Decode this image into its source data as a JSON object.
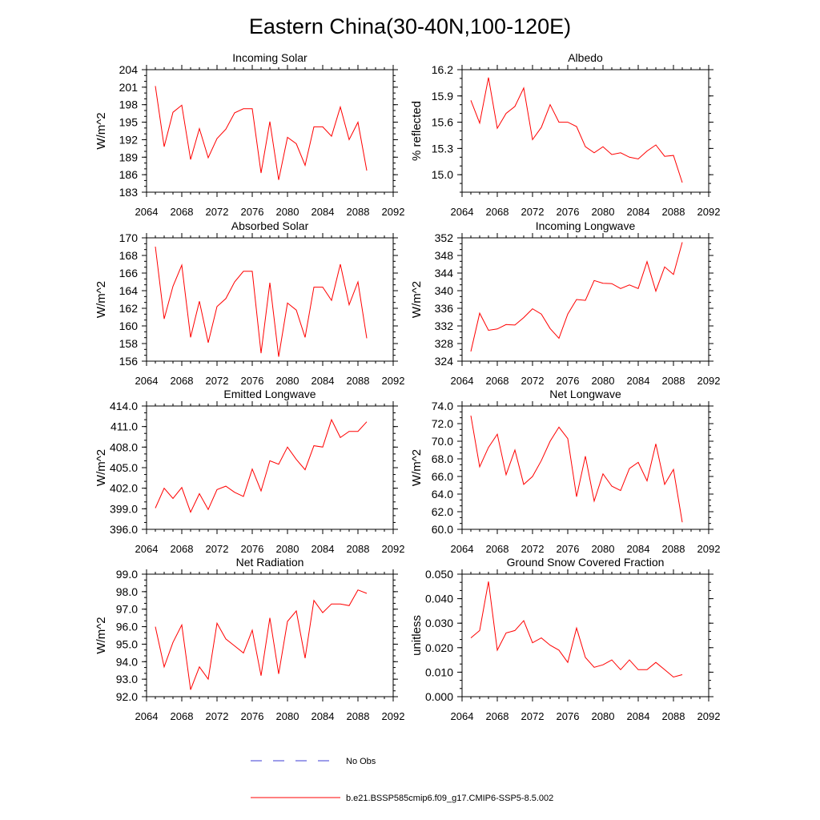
{
  "figure": {
    "title": "Eastern China(30-40N,100-120E)"
  },
  "legend": {
    "entries": [
      {
        "label": "No Obs",
        "color": "#3b3bd6",
        "dash": true
      },
      {
        "label": "b.e21.BSSP585cmip6.f09_g17.CMIP6-SSP5-8.5.002",
        "color": "#ff0000",
        "dash": false
      }
    ]
  },
  "colors": {
    "series": "#ff0000",
    "axis": "#000000"
  },
  "chart_data": [
    {
      "type": "line",
      "title": "Incoming Solar",
      "ylabel": "W/m^2",
      "xlim": [
        2064,
        2092
      ],
      "xticks": [
        "2064",
        "2068",
        "2072",
        "2076",
        "2080",
        "2084",
        "2088",
        "2092"
      ],
      "ylim": [
        183,
        204
      ],
      "yticks": [
        "183",
        "186",
        "189",
        "192",
        "195",
        "198",
        "201",
        "204"
      ],
      "series": [
        {
          "x": [
            2065,
            2066,
            2067,
            2068,
            2069,
            2070,
            2071,
            2072,
            2073,
            2074,
            2075,
            2076,
            2077,
            2078,
            2079,
            2080,
            2081,
            2082,
            2083,
            2084,
            2085,
            2086,
            2087,
            2088,
            2089
          ],
          "values": [
            201.2,
            190.8,
            196.7,
            197.9,
            188.6,
            193.9,
            188.9,
            192.2,
            193.8,
            196.6,
            197.3,
            197.3,
            186.3,
            195.1,
            185.1,
            192.4,
            191.3,
            187.6,
            194.2,
            194.2,
            192.6,
            197.6,
            192.0,
            195.0,
            186.7
          ]
        }
      ]
    },
    {
      "type": "line",
      "title": "Albedo",
      "ylabel": "% reflected",
      "xlim": [
        2064,
        2092
      ],
      "xticks": [
        "2064",
        "2068",
        "2072",
        "2076",
        "2080",
        "2084",
        "2088",
        "2092"
      ],
      "ylim": [
        14.8,
        16.2
      ],
      "yticks": [
        "15.0",
        "15.3",
        "15.6",
        "15.9",
        "16.2"
      ],
      "series": [
        {
          "x": [
            2065,
            2066,
            2067,
            2068,
            2069,
            2070,
            2071,
            2072,
            2073,
            2074,
            2075,
            2076,
            2077,
            2078,
            2079,
            2080,
            2081,
            2082,
            2083,
            2084,
            2085,
            2086,
            2087,
            2088,
            2089
          ],
          "values": [
            15.85,
            15.59,
            16.11,
            15.53,
            15.7,
            15.78,
            15.99,
            15.4,
            15.54,
            15.8,
            15.6,
            15.6,
            15.55,
            15.32,
            15.25,
            15.32,
            15.23,
            15.25,
            15.2,
            15.18,
            15.27,
            15.34,
            15.21,
            15.22,
            14.91
          ]
        }
      ]
    },
    {
      "type": "line",
      "title": "Absorbed Solar",
      "ylabel": "W/m^2",
      "xlim": [
        2064,
        2092
      ],
      "xticks": [
        "2064",
        "2068",
        "2072",
        "2076",
        "2080",
        "2084",
        "2088",
        "2092"
      ],
      "ylim": [
        156,
        170
      ],
      "yticks": [
        "156",
        "158",
        "160",
        "162",
        "164",
        "166",
        "168",
        "170"
      ],
      "series": [
        {
          "x": [
            2065,
            2066,
            2067,
            2068,
            2069,
            2070,
            2071,
            2072,
            2073,
            2074,
            2075,
            2076,
            2077,
            2078,
            2079,
            2080,
            2081,
            2082,
            2083,
            2084,
            2085,
            2086,
            2087,
            2088,
            2089
          ],
          "values": [
            169.0,
            160.8,
            164.5,
            166.9,
            158.7,
            162.8,
            158.1,
            162.2,
            163.1,
            165.0,
            166.2,
            166.2,
            156.9,
            164.9,
            156.5,
            162.6,
            161.8,
            158.7,
            164.4,
            164.4,
            162.9,
            167.0,
            162.4,
            165.0,
            158.6
          ]
        }
      ]
    },
    {
      "type": "line",
      "title": "Incoming Longwave",
      "ylabel": "W/m^2",
      "xlim": [
        2064,
        2092
      ],
      "xticks": [
        "2064",
        "2068",
        "2072",
        "2076",
        "2080",
        "2084",
        "2088",
        "2092"
      ],
      "ylim": [
        324,
        352
      ],
      "yticks": [
        "324",
        "328",
        "332",
        "336",
        "340",
        "344",
        "348",
        "352"
      ],
      "series": [
        {
          "x": [
            2065,
            2066,
            2067,
            2068,
            2069,
            2070,
            2071,
            2072,
            2073,
            2074,
            2075,
            2076,
            2077,
            2078,
            2079,
            2080,
            2081,
            2082,
            2083,
            2084,
            2085,
            2086,
            2087,
            2088,
            2089
          ],
          "values": [
            326.2,
            334.9,
            331.0,
            331.3,
            332.3,
            332.2,
            333.9,
            335.9,
            334.7,
            331.4,
            329.2,
            334.7,
            338.0,
            337.8,
            342.3,
            341.7,
            341.6,
            340.5,
            341.3,
            340.5,
            346.6,
            339.9,
            345.4,
            343.7,
            351.0
          ]
        }
      ]
    },
    {
      "type": "line",
      "title": "Emitted Longwave",
      "ylabel": "W/m^2",
      "xlim": [
        2064,
        2092
      ],
      "xticks": [
        "2064",
        "2068",
        "2072",
        "2076",
        "2080",
        "2084",
        "2088",
        "2092"
      ],
      "ylim": [
        396,
        414
      ],
      "yticks": [
        "396.0",
        "399.0",
        "402.0",
        "405.0",
        "408.0",
        "411.0",
        "414.0"
      ],
      "series": [
        {
          "x": [
            2065,
            2066,
            2067,
            2068,
            2069,
            2070,
            2071,
            2072,
            2073,
            2074,
            2075,
            2076,
            2077,
            2078,
            2079,
            2080,
            2081,
            2082,
            2083,
            2084,
            2085,
            2086,
            2087,
            2088,
            2089
          ],
          "values": [
            399.1,
            402.0,
            400.5,
            402.1,
            398.5,
            401.2,
            398.9,
            401.8,
            402.3,
            401.4,
            400.8,
            404.8,
            401.6,
            406.0,
            405.5,
            408.0,
            406.2,
            404.7,
            408.2,
            408.0,
            412.0,
            409.4,
            410.3,
            410.3,
            411.7
          ]
        }
      ]
    },
    {
      "type": "line",
      "title": "Net Longwave",
      "ylabel": "W/m^2",
      "xlim": [
        2064,
        2092
      ],
      "xticks": [
        "2064",
        "2068",
        "2072",
        "2076",
        "2080",
        "2084",
        "2088",
        "2092"
      ],
      "ylim": [
        60,
        74
      ],
      "yticks": [
        "60.0",
        "62.0",
        "64.0",
        "66.0",
        "68.0",
        "70.0",
        "72.0",
        "74.0"
      ],
      "series": [
        {
          "x": [
            2065,
            2066,
            2067,
            2068,
            2069,
            2070,
            2071,
            2072,
            2073,
            2074,
            2075,
            2076,
            2077,
            2078,
            2079,
            2080,
            2081,
            2082,
            2083,
            2084,
            2085,
            2086,
            2087,
            2088,
            2089
          ],
          "values": [
            72.9,
            67.1,
            69.3,
            70.8,
            66.2,
            69.0,
            65.1,
            66.0,
            67.8,
            70.0,
            71.6,
            70.3,
            63.7,
            68.3,
            63.2,
            66.3,
            64.9,
            64.4,
            66.9,
            67.6,
            65.5,
            69.7,
            65.1,
            66.8,
            60.8
          ]
        }
      ]
    },
    {
      "type": "line",
      "title": "Net Radiation",
      "ylabel": "W/m^2",
      "xlim": [
        2064,
        2092
      ],
      "xticks": [
        "2064",
        "2068",
        "2072",
        "2076",
        "2080",
        "2084",
        "2088",
        "2092"
      ],
      "ylim": [
        92,
        99
      ],
      "yticks": [
        "92.0",
        "93.0",
        "94.0",
        "95.0",
        "96.0",
        "97.0",
        "98.0",
        "99.0"
      ],
      "series": [
        {
          "x": [
            2065,
            2066,
            2067,
            2068,
            2069,
            2070,
            2071,
            2072,
            2073,
            2074,
            2075,
            2076,
            2077,
            2078,
            2079,
            2080,
            2081,
            2082,
            2083,
            2084,
            2085,
            2086,
            2087,
            2088,
            2089
          ],
          "values": [
            96.0,
            93.7,
            95.1,
            96.1,
            92.4,
            93.7,
            93.0,
            96.2,
            95.3,
            94.9,
            94.5,
            95.8,
            93.2,
            96.5,
            93.3,
            96.3,
            96.9,
            94.2,
            97.5,
            96.8,
            97.3,
            97.3,
            97.2,
            98.1,
            97.9
          ]
        }
      ]
    },
    {
      "type": "line",
      "title": "Ground Snow Covered Fraction",
      "ylabel": "unitless",
      "xlim": [
        2064,
        2092
      ],
      "xticks": [
        "2064",
        "2068",
        "2072",
        "2076",
        "2080",
        "2084",
        "2088",
        "2092"
      ],
      "ylim": [
        0,
        0.05
      ],
      "yticks": [
        "0.000",
        "0.010",
        "0.020",
        "0.030",
        "0.040",
        "0.050"
      ],
      "series": [
        {
          "x": [
            2065,
            2066,
            2067,
            2068,
            2069,
            2070,
            2071,
            2072,
            2073,
            2074,
            2075,
            2076,
            2077,
            2078,
            2079,
            2080,
            2081,
            2082,
            2083,
            2084,
            2085,
            2086,
            2087,
            2088,
            2089
          ],
          "values": [
            0.024,
            0.027,
            0.047,
            0.019,
            0.026,
            0.027,
            0.031,
            0.022,
            0.024,
            0.021,
            0.019,
            0.014,
            0.028,
            0.016,
            0.012,
            0.013,
            0.015,
            0.011,
            0.015,
            0.011,
            0.011,
            0.014,
            0.011,
            0.008,
            0.009
          ]
        }
      ]
    }
  ]
}
